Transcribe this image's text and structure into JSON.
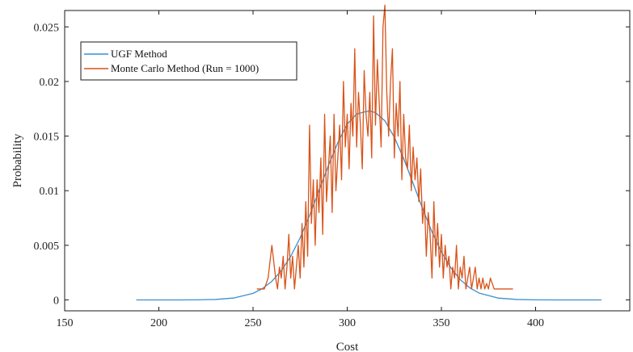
{
  "chart_data": {
    "type": "line",
    "xlabel": "Cost",
    "ylabel": "Probability",
    "xlim": [
      150,
      450
    ],
    "ylim": [
      -0.001,
      0.0265
    ],
    "x_ticks": [
      150,
      200,
      250,
      300,
      350,
      400
    ],
    "x_tick_labels": [
      "150",
      "200",
      "250",
      "300",
      "350",
      "400"
    ],
    "y_ticks": [
      0,
      0.005,
      0.01,
      0.015,
      0.02,
      0.025
    ],
    "y_tick_labels": [
      "0",
      "0.005",
      "0.01",
      "0.015",
      "0.02",
      "0.025"
    ],
    "grid": false,
    "legend_position": "top-left",
    "series": [
      {
        "name": "UGF Method",
        "color": "#3a8fd0",
        "x": [
          188,
          200,
          210,
          220,
          230,
          240,
          250,
          255,
          260,
          265,
          270,
          275,
          280,
          285,
          290,
          295,
          300,
          305,
          310,
          312,
          315,
          320,
          325,
          330,
          335,
          340,
          345,
          350,
          355,
          360,
          365,
          370,
          380,
          390,
          400,
          410,
          420,
          435
        ],
        "y": [
          0,
          0,
          0,
          1e-05,
          4e-05,
          0.00018,
          0.0006,
          0.00104,
          0.0017,
          0.00267,
          0.00399,
          0.00568,
          0.00773,
          0.01,
          0.0123,
          0.0144,
          0.0161,
          0.01702,
          0.01725,
          0.0173,
          0.01715,
          0.0164,
          0.0149,
          0.01293,
          0.01066,
          0.00836,
          0.00623,
          0.00439,
          0.00294,
          0.00186,
          0.00111,
          0.00063,
          0.00017,
          4e-05,
          1e-05,
          0,
          0,
          0
        ]
      },
      {
        "name": "Monte Carlo Method (Run = 1000)",
        "color": "#d95319",
        "x": [
          252,
          256,
          258,
          260,
          262,
          263,
          264,
          265,
          266,
          267,
          268,
          269,
          270,
          271,
          272,
          273,
          274,
          275,
          276,
          277,
          278,
          279,
          280,
          281,
          282,
          283,
          284,
          285,
          286,
          287,
          288,
          289,
          290,
          291,
          292,
          293,
          294,
          295,
          296,
          297,
          298,
          299,
          300,
          301,
          302,
          303,
          304,
          305,
          306,
          307,
          308,
          309,
          310,
          311,
          312,
          313,
          314,
          315,
          316,
          317,
          318,
          319,
          320,
          321,
          322,
          323,
          324,
          325,
          326,
          327,
          328,
          329,
          330,
          331,
          332,
          333,
          334,
          335,
          336,
          337,
          338,
          339,
          340,
          341,
          342,
          343,
          344,
          345,
          346,
          347,
          348,
          349,
          350,
          351,
          352,
          353,
          354,
          355,
          356,
          357,
          358,
          359,
          360,
          361,
          362,
          363,
          364,
          365,
          366,
          367,
          368,
          369,
          370,
          371,
          372,
          373,
          374,
          375,
          376,
          378,
          380,
          383,
          386,
          388
        ],
        "y": [
          0.001,
          0.001,
          0.002,
          0.005,
          0.002,
          0.001,
          0.003,
          0.002,
          0.004,
          0.001,
          0.003,
          0.006,
          0.002,
          0.004,
          0.001,
          0.003,
          0.005,
          0.002,
          0.007,
          0.003,
          0.009,
          0.004,
          0.016,
          0.007,
          0.011,
          0.005,
          0.011,
          0.008,
          0.013,
          0.006,
          0.017,
          0.009,
          0.012,
          0.015,
          0.008,
          0.017,
          0.01,
          0.013,
          0.016,
          0.011,
          0.02,
          0.014,
          0.017,
          0.012,
          0.018,
          0.015,
          0.023,
          0.014,
          0.019,
          0.016,
          0.012,
          0.021,
          0.017,
          0.015,
          0.019,
          0.013,
          0.026,
          0.016,
          0.022,
          0.018,
          0.014,
          0.025,
          0.027,
          0.019,
          0.015,
          0.02,
          0.023,
          0.013,
          0.018,
          0.015,
          0.02,
          0.011,
          0.017,
          0.013,
          0.012,
          0.016,
          0.01,
          0.014,
          0.011,
          0.013,
          0.009,
          0.012,
          0.007,
          0.009,
          0.004,
          0.008,
          0.006,
          0.002,
          0.009,
          0.004,
          0.007,
          0.003,
          0.006,
          0.002,
          0.005,
          0.003,
          0.004,
          0.001,
          0.003,
          0.002,
          0.005,
          0.001,
          0.003,
          0.002,
          0.004,
          0.001,
          0.002,
          0.003,
          0.001,
          0.002,
          0.003,
          0.001,
          0.002,
          0.001,
          0.002,
          0.001,
          0.0015,
          0.001,
          0.002,
          0.001,
          0.001,
          0.001,
          0.001,
          0.001
        ]
      }
    ]
  }
}
